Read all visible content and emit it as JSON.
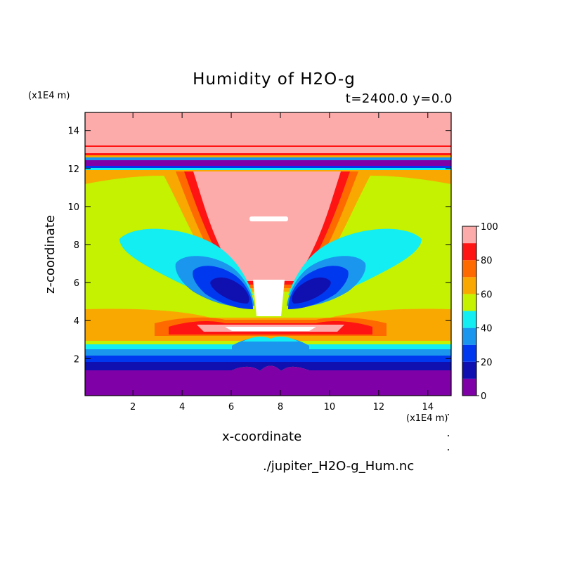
{
  "chart_data": {
    "type": "heatmap",
    "title": "Humidity of H2O-g",
    "subtitle": "t=2400.0 y=0.0",
    "xlabel": "x-coordinate",
    "ylabel": "z-coordinate",
    "x_unit": "(x1E4 m)",
    "y_unit": "(x1E4 m)",
    "xlim": [
      0.05,
      14.95
    ],
    "ylim": [
      0.05,
      14.95
    ],
    "x_ticks": [
      2,
      4,
      6,
      8,
      10,
      12,
      14
    ],
    "y_ticks": [
      2,
      4,
      6,
      8,
      10,
      12,
      14
    ],
    "colorbar": {
      "range": [
        0,
        100
      ],
      "ticks": [
        0,
        20,
        40,
        60,
        80,
        100
      ],
      "levels": [
        {
          "min": 0,
          "max": 10,
          "color": "#8000a8"
        },
        {
          "min": 10,
          "max": 20,
          "color": "#1010b0"
        },
        {
          "min": 20,
          "max": 30,
          "color": "#0038f0"
        },
        {
          "min": 30,
          "max": 40,
          "color": "#1a96ee"
        },
        {
          "min": 40,
          "max": 50,
          "color": "#12eef2"
        },
        {
          "min": 50,
          "max": 60,
          "color": "#c4f200"
        },
        {
          "min": 60,
          "max": 70,
          "color": "#f8a800"
        },
        {
          "min": 70,
          "max": 80,
          "color": "#ff6a00"
        },
        {
          "min": 80,
          "max": 90,
          "color": "#ff1414"
        },
        {
          "min": 90,
          "max": 100,
          "color": "#fcaaaa"
        }
      ]
    },
    "source_file": "./jupiter_H2O-g_Hum.nc"
  }
}
